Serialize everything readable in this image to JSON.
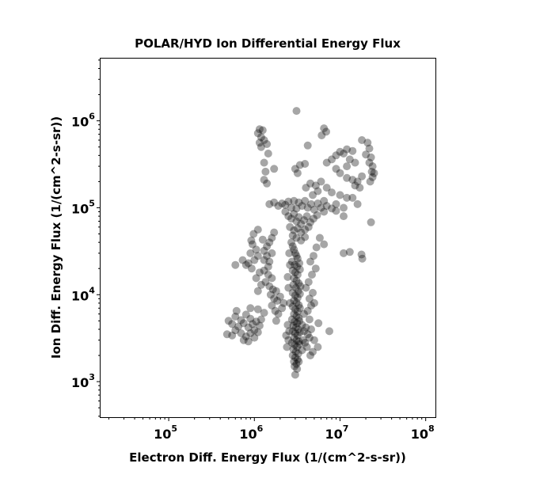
{
  "chart_data": {
    "type": "scatter",
    "title": "POLAR/HYD  Ion Differential Energy Flux",
    "xlabel": "Electron Diff. Energy Flux (1/(cm^2-s-sr))",
    "ylabel": "Ion Diff. Energy Flux (1/(cm^2-s-sr))",
    "xscale": "log",
    "yscale": "log",
    "xlim": [
      16000,
      130000000
    ],
    "ylim": [
      390,
      5200000
    ],
    "xticks": [
      {
        "value": 100000,
        "base": "10",
        "exp": "5"
      },
      {
        "value": 1000000,
        "base": "10",
        "exp": "6"
      },
      {
        "value": 10000000,
        "base": "10",
        "exp": "7"
      },
      {
        "value": 100000000,
        "base": "10",
        "exp": "8"
      }
    ],
    "yticks": [
      {
        "value": 1000,
        "base": "10",
        "exp": "3"
      },
      {
        "value": 10000,
        "base": "10",
        "exp": "4"
      },
      {
        "value": 100000,
        "base": "10",
        "exp": "5"
      },
      {
        "value": 1000000,
        "base": "10",
        "exp": "6"
      }
    ],
    "marker_color": "#000000",
    "marker_alpha": 0.35,
    "grid": false,
    "points": [
      [
        1150000,
        800000
      ],
      [
        1250000,
        780000
      ],
      [
        1100000,
        720000
      ],
      [
        1200000,
        650000
      ],
      [
        1150000,
        560000
      ],
      [
        1300000,
        600000
      ],
      [
        1200000,
        500000
      ],
      [
        1400000,
        540000
      ],
      [
        1300000,
        330000
      ],
      [
        1450000,
        420000
      ],
      [
        1350000,
        260000
      ],
      [
        1700000,
        280000
      ],
      [
        1300000,
        210000
      ],
      [
        1400000,
        190000
      ],
      [
        3100000,
        1300000
      ],
      [
        6500000,
        820000
      ],
      [
        6900000,
        750000
      ],
      [
        6100000,
        680000
      ],
      [
        18000000,
        600000
      ],
      [
        21000000,
        560000
      ],
      [
        22000000,
        480000
      ],
      [
        20000000,
        410000
      ],
      [
        23000000,
        380000
      ],
      [
        22000000,
        330000
      ],
      [
        24000000,
        300000
      ],
      [
        23500000,
        260000
      ],
      [
        25000000,
        250000
      ],
      [
        24000000,
        225000
      ],
      [
        22500000,
        200000
      ],
      [
        10000000,
        440000
      ],
      [
        12000000,
        470000
      ],
      [
        14000000,
        450000
      ],
      [
        9000000,
        400000
      ],
      [
        11000000,
        420000
      ],
      [
        13000000,
        360000
      ],
      [
        15000000,
        330000
      ],
      [
        12000000,
        300000
      ],
      [
        8000000,
        360000
      ],
      [
        7000000,
        330000
      ],
      [
        9000000,
        280000
      ],
      [
        10000000,
        250000
      ],
      [
        12000000,
        220000
      ],
      [
        14000000,
        210000
      ],
      [
        16000000,
        200000
      ],
      [
        18000000,
        230000
      ],
      [
        17000000,
        170000
      ],
      [
        15000000,
        180000
      ],
      [
        3000000,
        280000
      ],
      [
        3400000,
        310000
      ],
      [
        3200000,
        250000
      ],
      [
        4000000,
        170000
      ],
      [
        4500000,
        190000
      ],
      [
        5200000,
        180000
      ],
      [
        6000000,
        200000
      ],
      [
        7000000,
        170000
      ],
      [
        8000000,
        150000
      ],
      [
        10000000,
        140000
      ],
      [
        12000000,
        130000
      ],
      [
        14000000,
        130000
      ],
      [
        16000000,
        110000
      ],
      [
        6500000,
        120000
      ],
      [
        9000000,
        110000
      ],
      [
        4800000,
        140000
      ],
      [
        5500000,
        155000
      ],
      [
        1500000,
        110000
      ],
      [
        1700000,
        115000
      ],
      [
        1900000,
        105000
      ],
      [
        2100000,
        112000
      ],
      [
        2300000,
        108000
      ],
      [
        2500000,
        118000
      ],
      [
        2700000,
        100000
      ],
      [
        2900000,
        120000
      ],
      [
        3100000,
        98000
      ],
      [
        3300000,
        115000
      ],
      [
        3600000,
        105000
      ],
      [
        3900000,
        120000
      ],
      [
        4200000,
        100000
      ],
      [
        4600000,
        110000
      ],
      [
        5000000,
        95000
      ],
      [
        5500000,
        112000
      ],
      [
        6000000,
        100000
      ],
      [
        6500000,
        90000
      ],
      [
        7000000,
        105000
      ],
      [
        8000000,
        98000
      ],
      [
        9000000,
        92000
      ],
      [
        11000000,
        100000
      ],
      [
        2300000,
        90000
      ],
      [
        2500000,
        80000
      ],
      [
        2700000,
        75000
      ],
      [
        2900000,
        85000
      ],
      [
        3100000,
        70000
      ],
      [
        3300000,
        78000
      ],
      [
        3500000,
        65000
      ],
      [
        3800000,
        72000
      ],
      [
        4100000,
        80000
      ],
      [
        4500000,
        68000
      ],
      [
        4900000,
        75000
      ],
      [
        5400000,
        82000
      ],
      [
        2600000,
        60000
      ],
      [
        2900000,
        55000
      ],
      [
        3200000,
        58000
      ],
      [
        3500000,
        52000
      ],
      [
        3900000,
        56000
      ],
      [
        4300000,
        60000
      ],
      [
        2800000,
        48000
      ],
      [
        3100000,
        45000
      ],
      [
        3500000,
        42000
      ],
      [
        3900000,
        46000
      ],
      [
        1700000,
        52000
      ],
      [
        1600000,
        45000
      ],
      [
        1500000,
        40000
      ],
      [
        1400000,
        36000
      ],
      [
        1300000,
        32000
      ],
      [
        1600000,
        30000
      ],
      [
        1400000,
        28000
      ],
      [
        1300000,
        25000
      ],
      [
        1500000,
        24000
      ],
      [
        1450000,
        21000
      ],
      [
        1300000,
        19000
      ],
      [
        1450000,
        17000
      ],
      [
        1600000,
        15500
      ],
      [
        1350000,
        14000
      ],
      [
        1500000,
        12500
      ],
      [
        1650000,
        11500
      ],
      [
        1800000,
        11000
      ],
      [
        1550000,
        10000
      ],
      [
        1700000,
        9000
      ],
      [
        1850000,
        8500
      ],
      [
        2000000,
        9500
      ],
      [
        1600000,
        7500
      ],
      [
        1750000,
        6500
      ],
      [
        1900000,
        6000
      ],
      [
        2100000,
        7000
      ],
      [
        2200000,
        8000
      ],
      [
        1800000,
        5000
      ],
      [
        950000,
        38000
      ],
      [
        1050000,
        33000
      ],
      [
        1100000,
        28000
      ],
      [
        900000,
        30000
      ],
      [
        1000000,
        25000
      ],
      [
        850000,
        23000
      ],
      [
        930000,
        20000
      ],
      [
        1150000,
        18000
      ],
      [
        1050000,
        15500
      ],
      [
        1200000,
        13000
      ],
      [
        1100000,
        11000
      ],
      [
        980000,
        50000
      ],
      [
        1100000,
        56000
      ],
      [
        1250000,
        43000
      ],
      [
        920000,
        42000
      ],
      [
        600000,
        22000
      ],
      [
        730000,
        25000
      ],
      [
        800000,
        22000
      ],
      [
        500000,
        5000
      ],
      [
        550000,
        4600
      ],
      [
        600000,
        5600
      ],
      [
        650000,
        4300
      ],
      [
        700000,
        5100
      ],
      [
        750000,
        4700
      ],
      [
        800000,
        5900
      ],
      [
        850000,
        4200
      ],
      [
        900000,
        5300
      ],
      [
        950000,
        4600
      ],
      [
        1000000,
        3900
      ],
      [
        1050000,
        4900
      ],
      [
        1100000,
        3700
      ],
      [
        700000,
        3600
      ],
      [
        800000,
        3300
      ],
      [
        900000,
        3600
      ],
      [
        1000000,
        3200
      ],
      [
        600000,
        3900
      ],
      [
        550000,
        3400
      ],
      [
        480000,
        3500
      ],
      [
        750000,
        3000
      ],
      [
        850000,
        2900
      ],
      [
        1150000,
        4400
      ],
      [
        1200000,
        5200
      ],
      [
        620000,
        6500
      ],
      [
        900000,
        7000
      ],
      [
        1100000,
        6800
      ],
      [
        1300000,
        6200
      ],
      [
        2700000,
        40000
      ],
      [
        2800000,
        36000
      ],
      [
        2900000,
        33000
      ],
      [
        3000000,
        30000
      ],
      [
        3100000,
        28000
      ],
      [
        3200000,
        26000
      ],
      [
        2750000,
        24000
      ],
      [
        2950000,
        22000
      ],
      [
        3150000,
        21000
      ],
      [
        3350000,
        23000
      ],
      [
        2800000,
        19000
      ],
      [
        3000000,
        18000
      ],
      [
        3200000,
        17000
      ],
      [
        3400000,
        19500
      ],
      [
        2900000,
        15500
      ],
      [
        3100000,
        14500
      ],
      [
        3300000,
        13500
      ],
      [
        2850000,
        13000
      ],
      [
        3050000,
        12000
      ],
      [
        3250000,
        11000
      ],
      [
        3450000,
        12500
      ],
      [
        2800000,
        10500
      ],
      [
        3000000,
        9800
      ],
      [
        3200000,
        9200
      ],
      [
        3400000,
        10200
      ],
      [
        2900000,
        8600
      ],
      [
        3100000,
        8100
      ],
      [
        3300000,
        7600
      ],
      [
        2800000,
        7300
      ],
      [
        3000000,
        6800
      ],
      [
        3200000,
        6400
      ],
      [
        3400000,
        7000
      ],
      [
        2900000,
        6000
      ],
      [
        3100000,
        5700
      ],
      [
        3300000,
        5400
      ],
      [
        2750000,
        5200
      ],
      [
        2950000,
        4900
      ],
      [
        3150000,
        4700
      ],
      [
        3350000,
        5000
      ],
      [
        2850000,
        4400
      ],
      [
        3050000,
        4200
      ],
      [
        3250000,
        4000
      ],
      [
        2800000,
        3800
      ],
      [
        3000000,
        3600
      ],
      [
        3200000,
        3400
      ],
      [
        3400000,
        3700
      ],
      [
        2900000,
        3200
      ],
      [
        3100000,
        3000
      ],
      [
        3300000,
        2900
      ],
      [
        2750000,
        2800
      ],
      [
        2950000,
        2650
      ],
      [
        3150000,
        2500
      ],
      [
        3350000,
        2700
      ],
      [
        2850000,
        2350
      ],
      [
        3050000,
        2200
      ],
      [
        3250000,
        2100
      ],
      [
        2800000,
        2000
      ],
      [
        3000000,
        1900
      ],
      [
        3200000,
        1800
      ],
      [
        2900000,
        1700
      ],
      [
        3100000,
        1600
      ],
      [
        3300000,
        1700
      ],
      [
        2950000,
        1500
      ],
      [
        3150000,
        1400
      ],
      [
        3000000,
        1200
      ],
      [
        3600000,
        4500
      ],
      [
        3800000,
        3800
      ],
      [
        4000000,
        4200
      ],
      [
        4200000,
        3500
      ],
      [
        3700000,
        3000
      ],
      [
        3900000,
        2800
      ],
      [
        4100000,
        2500
      ],
      [
        3600000,
        2300
      ],
      [
        4400000,
        3200
      ],
      [
        4600000,
        4000
      ],
      [
        5000000,
        3000
      ],
      [
        5500000,
        2500
      ],
      [
        4800000,
        2200
      ],
      [
        4500000,
        2000
      ],
      [
        3800000,
        6000
      ],
      [
        4200000,
        6500
      ],
      [
        4600000,
        7500
      ],
      [
        5000000,
        8000
      ],
      [
        4400000,
        9000
      ],
      [
        4800000,
        10500
      ],
      [
        4000000,
        12000
      ],
      [
        4300000,
        14000
      ],
      [
        4700000,
        17000
      ],
      [
        5200000,
        20000
      ],
      [
        4500000,
        24000
      ],
      [
        4900000,
        28000
      ],
      [
        5300000,
        35000
      ],
      [
        5800000,
        45000
      ],
      [
        6500000,
        38000
      ],
      [
        7500000,
        3800
      ],
      [
        5600000,
        4700
      ],
      [
        4400000,
        5200
      ],
      [
        2500000,
        3000
      ],
      [
        2400000,
        2500
      ],
      [
        2550000,
        3800
      ],
      [
        2450000,
        4500
      ],
      [
        2350000,
        3400
      ],
      [
        2600000,
        8000
      ],
      [
        2500000,
        12000
      ],
      [
        2450000,
        16000
      ],
      [
        2600000,
        22000
      ],
      [
        2550000,
        30000
      ],
      [
        4200000,
        520000
      ],
      [
        3900000,
        320000
      ],
      [
        11000000,
        30000
      ],
      [
        13000000,
        31000
      ],
      [
        17800000,
        29000
      ],
      [
        18200000,
        26000
      ],
      [
        23000000,
        68000
      ],
      [
        11000000,
        80000
      ]
    ]
  }
}
